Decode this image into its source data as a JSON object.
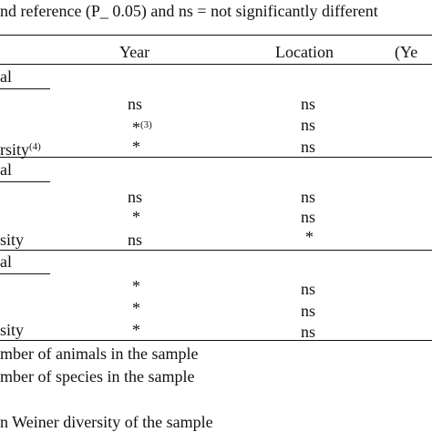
{
  "caption": "nd reference (P_ 0.05) and ns = not significantly different",
  "columns": [
    "Year",
    "Location",
    "(Ye"
  ],
  "sections": [
    {
      "heading": "al",
      "rows": [
        {
          "label": "",
          "year": "ns",
          "year_sup": "",
          "location": "ns"
        },
        {
          "label": "",
          "year": "*",
          "year_sup": "(3)",
          "location": "ns"
        },
        {
          "label": "rsity",
          "label_sup": "(4)",
          "year": "*",
          "year_sup": "",
          "location": "ns"
        }
      ]
    },
    {
      "heading": "al",
      "rows": [
        {
          "label": "",
          "year": "ns",
          "year_sup": "",
          "location": "ns"
        },
        {
          "label": "",
          "year": "*",
          "year_sup": "",
          "location": "ns"
        },
        {
          "label": "sity",
          "label_sup": "",
          "year": "ns",
          "year_sup": "",
          "location": "*"
        }
      ]
    },
    {
      "heading": "al",
      "rows": [
        {
          "label": "",
          "year": "*",
          "year_sup": "",
          "location": "ns"
        },
        {
          "label": "",
          "year": "*",
          "year_sup": "",
          "location": "ns"
        },
        {
          "label": "sity",
          "label_sup": "",
          "year": "*",
          "year_sup": "",
          "location": "ns"
        }
      ]
    }
  ],
  "footnotes": [
    "mber of animals in the sample",
    "mber of species in the sample",
    "",
    "n Weiner diversity of the sample"
  ]
}
